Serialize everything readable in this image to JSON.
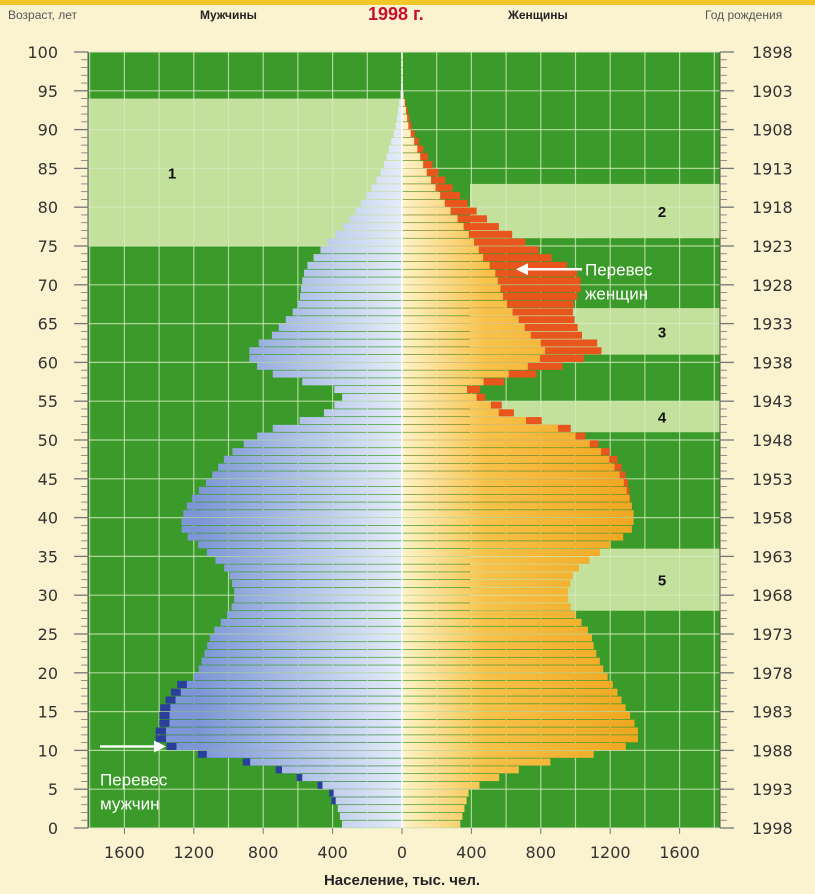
{
  "header": {
    "age_label": "Возраст, лет",
    "men_label": "Мужчины",
    "year_label": "1998 г.",
    "women_label": "Женщины",
    "birth_label": "Год рождения"
  },
  "colors": {
    "background": "#fbf2cf",
    "plot_green": "#3a9a2a",
    "band_light": "#cfe6a6",
    "grid": "#d8ecc0",
    "men_edge": "#7d97d6",
    "men_center": "#e4ecf8",
    "women_edge": "#f0a51e",
    "women_center": "#fff3c8",
    "excess_women": "#e8561e",
    "excess_men": "#2a3f9a",
    "header_year": "#c8102e"
  },
  "chart_data": {
    "type": "population_pyramid",
    "title": "1998 г.",
    "xlabel": "Население, тыс. чел.",
    "ylabel": "Возраст, лет",
    "y2label": "Год рождения",
    "left_label": "Мужчины",
    "right_label": "Женщины",
    "xlim": [
      -1800,
      1800
    ],
    "ylim": [
      0,
      100
    ],
    "x_ticks": [
      "1600",
      "1200",
      "800",
      "400",
      "0",
      "400",
      "800",
      "1200",
      "1600"
    ],
    "y_ticks": [
      "0",
      "5",
      "10",
      "15",
      "20",
      "25",
      "30",
      "35",
      "40",
      "45",
      "50",
      "55",
      "60",
      "65",
      "70",
      "75",
      "80",
      "85",
      "90",
      "95",
      "100"
    ],
    "birth_year_ticks": [
      "1998",
      "1993",
      "1988",
      "1983",
      "1978",
      "1973",
      "1968",
      "1963",
      "1958",
      "1953",
      "1948",
      "1943",
      "1938",
      "1933",
      "1928",
      "1923",
      "1918",
      "1913",
      "1908",
      "1903",
      "1898"
    ],
    "ages": [
      0,
      5,
      8,
      10,
      11,
      12,
      14,
      15,
      18,
      20,
      23,
      25,
      28,
      30,
      33,
      35,
      37,
      38,
      40,
      42,
      45,
      48,
      50,
      52,
      53,
      55,
      56,
      57,
      58,
      60,
      62,
      63,
      65,
      67,
      68,
      70,
      72,
      73,
      75,
      78,
      80,
      83,
      85,
      88,
      90,
      95
    ],
    "men": [
      340,
      400,
      750,
      1250,
      1350,
      1370,
      1330,
      1350,
      1260,
      1180,
      1130,
      1100,
      990,
      960,
      1000,
      1100,
      1200,
      1270,
      1270,
      1230,
      1110,
      1010,
      880,
      700,
      480,
      360,
      330,
      450,
      700,
      880,
      880,
      770,
      690,
      610,
      590,
      580,
      560,
      530,
      450,
      320,
      250,
      160,
      110,
      70,
      40,
      5
    ],
    "women": [
      330,
      390,
      730,
      1230,
      1350,
      1370,
      1330,
      1300,
      1230,
      1170,
      1110,
      1090,
      980,
      950,
      990,
      1110,
      1230,
      1320,
      1340,
      1320,
      1270,
      1180,
      1050,
      850,
      580,
      490,
      370,
      380,
      560,
      780,
      840,
      760,
      690,
      620,
      590,
      560,
      530,
      480,
      430,
      340,
      260,
      180,
      130,
      80,
      40,
      5
    ],
    "excess_women_outline": [
      330,
      390,
      730,
      1230,
      1350,
      1370,
      1330,
      1300,
      1230,
      1170,
      1110,
      1090,
      980,
      950,
      990,
      1110,
      1230,
      1320,
      1340,
      1320,
      1300,
      1230,
      1100,
      930,
      680,
      540,
      420,
      480,
      700,
      1000,
      1200,
      1050,
      1000,
      980,
      1000,
      1040,
      1000,
      900,
      750,
      520,
      400,
      270,
      190,
      110,
      60,
      5
    ],
    "zones": [
      {
        "id": "1",
        "side": "left",
        "age_from": 75,
        "age_to": 94
      },
      {
        "id": "2",
        "side": "right",
        "age_from": 76,
        "age_to": 83
      },
      {
        "id": "3",
        "side": "right",
        "age_from": 61,
        "age_to": 67
      },
      {
        "id": "4",
        "side": "right",
        "age_from": 51,
        "age_to": 55
      },
      {
        "id": "5",
        "side": "right",
        "age_from": 28,
        "age_to": 36
      }
    ],
    "annotations": {
      "excess_women": [
        "Перевес",
        "женщин"
      ],
      "excess_men": [
        "Перевес",
        "мужчин"
      ]
    }
  }
}
